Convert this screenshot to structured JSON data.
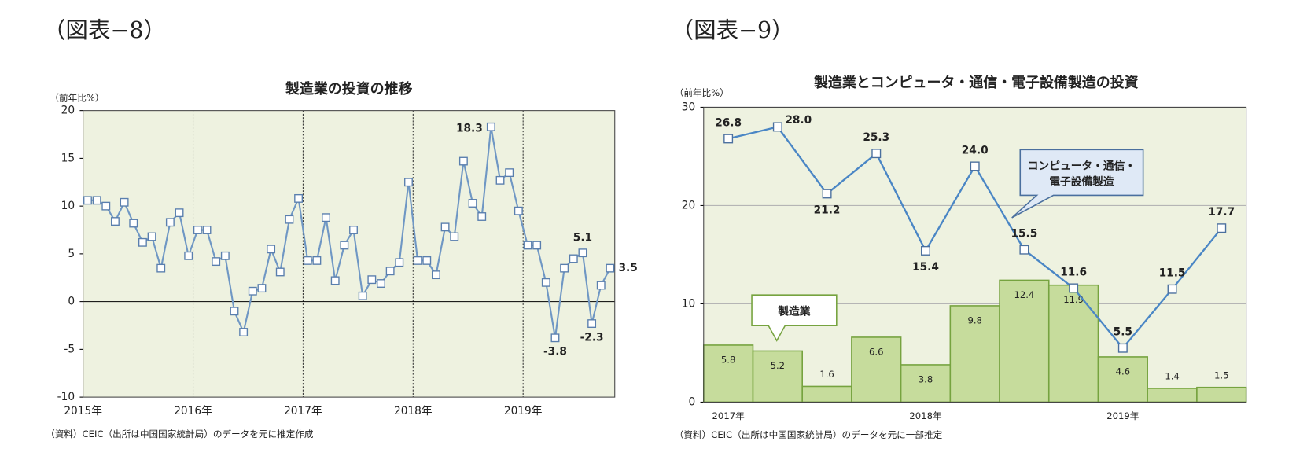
{
  "chart_data": [
    {
      "type": "line",
      "figure_label": "（図表−8）",
      "title": "製造業の投資の推移",
      "y_label": "（前年比%）",
      "source": "（資料）CEIC（出所は中国国家統計局）のデータを元に推定作成",
      "categories": [
        "2015年",
        null,
        null,
        null,
        null,
        null,
        null,
        null,
        null,
        null,
        null,
        null,
        "2016年",
        null,
        null,
        null,
        null,
        null,
        null,
        null,
        null,
        null,
        null,
        null,
        "2017年",
        null,
        null,
        null,
        null,
        null,
        null,
        null,
        null,
        null,
        null,
        null,
        "2018年",
        null,
        null,
        null,
        null,
        null,
        null,
        null,
        null,
        null,
        null,
        null,
        "2019年",
        null,
        null,
        null,
        null,
        null,
        null,
        null,
        null,
        null
      ],
      "values": [
        10.6,
        10.6,
        10.0,
        8.4,
        10.4,
        8.2,
        6.2,
        6.8,
        3.5,
        8.3,
        9.3,
        4.8,
        7.5,
        7.5,
        4.2,
        4.8,
        -1.0,
        -3.2,
        1.1,
        1.4,
        5.5,
        3.1,
        8.6,
        10.8,
        4.3,
        4.3,
        8.8,
        2.2,
        5.9,
        7.5,
        0.6,
        2.3,
        1.9,
        3.2,
        4.1,
        12.5,
        4.3,
        4.3,
        2.8,
        7.8,
        6.8,
        14.7,
        10.3,
        8.9,
        18.3,
        12.7,
        13.5,
        9.5,
        5.9,
        5.9,
        2.0,
        -3.8,
        3.5,
        4.5,
        5.1,
        -2.3,
        1.7,
        3.5
      ],
      "value_labels": [
        null,
        null,
        null,
        null,
        null,
        null,
        null,
        null,
        null,
        null,
        null,
        null,
        null,
        null,
        null,
        null,
        null,
        null,
        null,
        null,
        null,
        null,
        null,
        null,
        null,
        null,
        null,
        null,
        null,
        null,
        null,
        null,
        null,
        null,
        null,
        null,
        null,
        null,
        null,
        null,
        null,
        null,
        null,
        null,
        "18.3",
        null,
        null,
        null,
        null,
        null,
        null,
        "-3.8",
        null,
        null,
        "5.1",
        "-2.3",
        null,
        "3.5"
      ],
      "color": "#6f97c4",
      "negative_label_color": "#e60000",
      "plot_background": "#eef2e0",
      "ylim": [
        -10,
        20
      ],
      "yticks": [
        -10,
        -5,
        0,
        5,
        10,
        15,
        20
      ],
      "year_dividers": true
    },
    {
      "type": "combo",
      "figure_label": "（図表−9）",
      "title": "製造業とコンピュータ・通信・電子設備製造の投資",
      "y_label": "（前年比%）",
      "source": "（資料）CEIC（出所は中国国家統計局）のデータを元に一部推定",
      "categories": [
        "2017年",
        null,
        null,
        null,
        "2018年",
        null,
        null,
        null,
        "2019年",
        null,
        null
      ],
      "series": [
        {
          "name": "製造業",
          "type": "bar",
          "color": "#c6dc9c",
          "edge_color": "#76a33f",
          "values": [
            5.8,
            5.2,
            1.6,
            6.6,
            3.8,
            9.8,
            12.4,
            11.9,
            4.6,
            1.4,
            1.5
          ]
        },
        {
          "name": "コンピュータ・通信・電子設備製造",
          "type": "line",
          "color": "#4a86c5",
          "values": [
            26.8,
            28.0,
            21.2,
            25.3,
            15.4,
            24.0,
            15.5,
            11.6,
            5.5,
            11.5,
            17.7
          ],
          "value_labels": [
            "26.8",
            "28.0",
            "21.2",
            "25.3",
            "15.4",
            "24.0",
            "15.5",
            "11.6",
            "5.5",
            "11.5",
            "17.7"
          ]
        }
      ],
      "plot_background": "#eef2e0",
      "ylim": [
        0,
        30
      ],
      "yticks": [
        0,
        10,
        20,
        30
      ],
      "grid": true
    }
  ]
}
